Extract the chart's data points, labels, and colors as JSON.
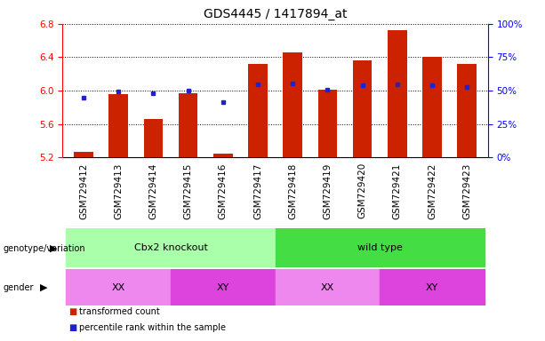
{
  "title": "GDS4445 / 1417894_at",
  "samples": [
    "GSM729412",
    "GSM729413",
    "GSM729414",
    "GSM729415",
    "GSM729416",
    "GSM729417",
    "GSM729418",
    "GSM729419",
    "GSM729420",
    "GSM729421",
    "GSM729422",
    "GSM729423"
  ],
  "bar_heights": [
    5.27,
    5.96,
    5.66,
    5.97,
    5.24,
    6.32,
    6.46,
    6.01,
    6.36,
    6.72,
    6.41,
    6.32
  ],
  "blue_dot_y": [
    5.91,
    5.995,
    5.965,
    6.0,
    5.86,
    6.07,
    6.09,
    6.01,
    6.06,
    6.08,
    6.065,
    6.04
  ],
  "ylim": [
    5.2,
    6.8
  ],
  "yticks_left": [
    5.2,
    5.6,
    6.0,
    6.4,
    6.8
  ],
  "yticks_right_vals": [
    0,
    25,
    50,
    75,
    100
  ],
  "right_ylabels": [
    "0%",
    "25%",
    "50%",
    "75%",
    "100%"
  ],
  "bar_color": "#cc2200",
  "dot_color": "#2222cc",
  "bar_width": 0.55,
  "genotype_groups": [
    {
      "text": "Cbx2 knockout",
      "xstart": 0,
      "xend": 5,
      "color": "#aaffaa"
    },
    {
      "text": "wild type",
      "xstart": 6,
      "xend": 11,
      "color": "#44dd44"
    }
  ],
  "gender_groups": [
    {
      "text": "XX",
      "xstart": 0,
      "xend": 2,
      "color": "#ee88ee"
    },
    {
      "text": "XY",
      "xstart": 3,
      "xend": 5,
      "color": "#dd44dd"
    },
    {
      "text": "XX",
      "xstart": 6,
      "xend": 8,
      "color": "#ee88ee"
    },
    {
      "text": "XY",
      "xstart": 9,
      "xend": 11,
      "color": "#dd44dd"
    }
  ],
  "legend_items": [
    {
      "label": "transformed count",
      "color": "#cc2200"
    },
    {
      "label": "percentile rank within the sample",
      "color": "#2222cc"
    }
  ],
  "xtick_bg_color": "#cccccc",
  "tick_fontsize": 7.5,
  "title_fontsize": 10,
  "annotation_fontsize": 8
}
